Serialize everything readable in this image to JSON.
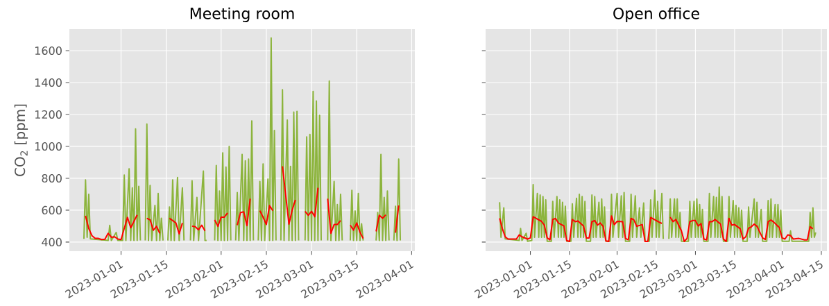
{
  "chart_data": [
    {
      "type": "line",
      "title": "Meeting room",
      "ylabel": "CO$_{2}$ [ppm]",
      "xlim": [
        "2022-12-16",
        "2023-04-02"
      ],
      "ylim": [
        343,
        1735
      ],
      "xticks": [
        "2023-01-01",
        "2023-01-15",
        "2023-02-01",
        "2023-02-15",
        "2023-03-01",
        "2023-03-15",
        "2023-04-01"
      ],
      "yticks": [
        400,
        600,
        800,
        1000,
        1200,
        1400,
        1600
      ],
      "grid": true,
      "series": [
        {
          "color": "#8cb43c",
          "x": [
            "2022-12-20T12:00",
            "2022-12-21",
            "2022-12-21T12:00",
            "2022-12-22",
            "2022-12-22T12:00",
            "2022-12-28",
            "2022-12-28T12:00",
            "2022-12-29",
            "2022-12-30T12:00",
            "2022-12-31",
            "2023-01-01T12:00",
            "2023-01-02",
            "2023-01-02T12:00",
            "2023-01-03T12:00",
            "2023-01-04",
            "2023-01-04T12:00",
            "2023-01-05",
            "2023-01-05T12:00",
            "2023-01-06",
            "2023-01-06T12:00",
            "2023-01-07",
            "2023-01-08",
            "2023-01-08T12:00",
            "2023-01-09",
            "2023-01-09T12:00",
            "2023-01-10",
            "2023-01-10T12:00",
            "2023-01-11T12:00",
            "2023-01-12",
            "2023-01-12T12:00",
            "2023-01-13",
            "2023-01-13T12:00",
            "2023-01-14",
            "2023-01-15",
            "2023-01-15T12:00",
            "2023-01-16",
            "2023-01-16T12:00",
            "2023-01-17",
            "2023-01-17T12:00",
            "2023-01-18T12:00",
            "2023-01-19",
            "2023-01-20",
            "2023-01-20T12:00",
            "2023-01-21T12:00",
            "2023-01-22T12:00",
            "2023-01-23",
            "2023-01-23T12:00",
            "2023-01-24T12:00",
            "2023-01-25",
            "2023-01-26T12:00",
            "2023-01-27",
            "2023-01-27T12:00",
            "2023-01-28T12:00",
            "2023-01-30",
            "2023-01-30T12:00",
            "2023-01-31",
            "2023-01-31T12:00",
            "2023-02-01",
            "2023-02-01T12:00",
            "2023-02-02",
            "2023-02-02T12:00",
            "2023-02-03",
            "2023-02-03T12:00",
            "2023-02-04",
            "2023-02-05",
            "2023-02-05T12:00",
            "2023-02-06",
            "2023-02-06T12:00",
            "2023-02-07T12:00",
            "2023-02-08",
            "2023-02-08T12:00",
            "2023-02-09",
            "2023-02-09T12:00",
            "2023-02-10",
            "2023-02-10T12:00",
            "2023-02-11",
            "2023-02-12",
            "2023-02-12T12:00",
            "2023-02-13",
            "2023-02-13T12:00",
            "2023-02-14",
            "2023-02-14T12:00",
            "2023-02-15T12:00",
            "2023-02-16",
            "2023-02-16T12:00",
            "2023-02-17",
            "2023-02-17T12:00",
            "2023-02-18",
            "2023-02-19",
            "2023-02-19T12:00",
            "2023-02-20",
            "2023-02-20T12:00",
            "2023-02-21T12:00",
            "2023-02-22",
            "2023-02-22T12:00",
            "2023-02-23",
            "2023-02-23T12:00",
            "2023-02-24",
            "2023-02-24T12:00",
            "2023-02-25",
            "2023-02-26",
            "2023-02-27",
            "2023-02-27T12:00",
            "2023-02-28",
            "2023-02-28T12:00",
            "2023-03-01",
            "2023-03-01T12:00",
            "2023-03-02",
            "2023-03-02T12:00",
            "2023-03-03",
            "2023-03-03T12:00",
            "2023-03-04",
            "2023-03-05",
            "2023-03-06",
            "2023-03-06T12:00",
            "2023-03-07",
            "2023-03-08",
            "2023-03-08T12:00",
            "2023-03-09",
            "2023-03-09T12:00",
            "2023-03-10",
            "2023-03-10T12:00",
            "2023-03-12",
            "2023-03-13",
            "2023-03-13T12:00",
            "2023-03-14",
            "2023-03-14T12:00",
            "2023-03-15",
            "2023-03-15T12:00",
            "2023-03-16",
            "2023-03-16T12:00",
            "2023-03-17",
            "2023-03-19",
            "2023-03-21",
            "2023-03-21T12:00",
            "2023-03-22",
            "2023-03-22T12:00",
            "2023-03-23",
            "2023-03-23T12:00",
            "2023-03-24",
            "2023-03-24T12:00",
            "2023-03-25",
            "2023-03-26",
            "2023-03-26T12:00",
            "2023-03-27",
            "2023-03-27T12:00",
            "2023-03-28",
            "2023-03-28T12:00"
          ],
          "values": [
            420,
            790,
            430,
            700,
            420,
            410,
            505,
            410,
            460,
            410,
            410,
            820,
            410,
            860,
            410,
            740,
            410,
            1110,
            410,
            750,
            410,
            null,
            410,
            1140,
            410,
            755,
            410,
            630,
            410,
            705,
            410,
            550,
            410,
            null,
            410,
            620,
            410,
            790,
            410,
            805,
            410,
            740,
            410,
            null,
            410,
            785,
            410,
            680,
            410,
            845,
            410,
            410,
            null,
            410,
            880,
            410,
            720,
            410,
            960,
            410,
            870,
            410,
            1000,
            410,
            null,
            410,
            710,
            410,
            950,
            410,
            910,
            410,
            920,
            410,
            1160,
            410,
            null,
            410,
            780,
            410,
            890,
            410,
            795,
            410,
            1680,
            410,
            1100,
            410,
            null,
            410,
            1355,
            410,
            1165,
            410,
            875,
            410,
            1215,
            410,
            1220,
            410,
            null,
            410,
            1060,
            410,
            1075,
            410,
            1345,
            410,
            1285,
            410,
            1195,
            410,
            null,
            410,
            1410,
            410,
            780,
            410,
            635,
            410,
            700,
            410,
            null,
            410,
            725,
            410,
            595,
            410,
            705,
            410,
            515,
            410,
            null,
            410,
            585,
            410,
            950,
            410,
            680,
            410,
            720,
            410,
            null,
            410,
            625,
            410,
            920,
            410
          ]
        },
        {
          "color": "#ff0000",
          "x": [
            "2022-12-21",
            "2022-12-22",
            "2022-12-23",
            "2022-12-24",
            "2022-12-25",
            "2022-12-26",
            "2022-12-27",
            "2022-12-28",
            "2022-12-29",
            "2022-12-30",
            "2022-12-31",
            "2023-01-01",
            "2023-01-03",
            "2023-01-04",
            "2023-01-06",
            "2023-01-07",
            "2023-01-09",
            "2023-01-10",
            "2023-01-11",
            "2023-01-12",
            "2023-01-13",
            "2023-01-14",
            "2023-01-16",
            "2023-01-18",
            "2023-01-19",
            "2023-01-20",
            "2023-01-21",
            "2023-01-23",
            "2023-01-24",
            "2023-01-25",
            "2023-01-26",
            "2023-01-27",
            "2023-01-28",
            "2023-01-30",
            "2023-01-31",
            "2023-02-01",
            "2023-02-02",
            "2023-02-03",
            "2023-02-04",
            "2023-02-06",
            "2023-02-07",
            "2023-02-08",
            "2023-02-09",
            "2023-02-10",
            "2023-02-11",
            "2023-02-13",
            "2023-02-14",
            "2023-02-15",
            "2023-02-16",
            "2023-02-17",
            "2023-02-18",
            "2023-02-20",
            "2023-02-22",
            "2023-02-23",
            "2023-02-24",
            "2023-02-25",
            "2023-02-27",
            "2023-02-28",
            "2023-03-01",
            "2023-03-02",
            "2023-03-03",
            "2023-03-04",
            "2023-03-06",
            "2023-03-07",
            "2023-03-08",
            "2023-03-09",
            "2023-03-10",
            "2023-03-11",
            "2023-03-13",
            "2023-03-14",
            "2023-03-15",
            "2023-03-16",
            "2023-03-17",
            "2023-03-18",
            "2023-03-21",
            "2023-03-22",
            "2023-03-23",
            "2023-03-24",
            "2023-03-25",
            "2023-03-27",
            "2023-03-28"
          ],
          "values": [
            565,
            485,
            440,
            423,
            423,
            416,
            418,
            455,
            430,
            433,
            419,
            416,
            555,
            490,
            570,
            null,
            549,
            539,
            474,
            499,
            455,
            null,
            549,
            520,
            452,
            520,
            null,
            500,
            496,
            477,
            506,
            470,
            null,
            539,
            499,
            556,
            556,
            583,
            null,
            506,
            585,
            590,
            503,
            672,
            null,
            597,
            556,
            510,
            629,
            597,
            null,
            875,
            513,
            600,
            665,
            null,
            593,
            568,
            593,
            559,
            740,
            null,
            672,
            455,
            510,
            510,
            535,
            null,
            506,
            475,
            520,
            462,
            423,
            null,
            467,
            568,
            549,
            571,
            null,
            459,
            629
          ]
        }
      ]
    },
    {
      "type": "line",
      "title": "Open office",
      "xlim": [
        "2022-12-16",
        "2023-04-17"
      ],
      "ylim": [
        343,
        1735
      ],
      "tick_labels": "x",
      "xticks": [
        "2023-01-01",
        "2023-01-15",
        "2023-02-01",
        "2023-02-15",
        "2023-03-01",
        "2023-03-15",
        "2023-04-01",
        "2023-04-15"
      ],
      "yticks": [
        400,
        600,
        800,
        1000,
        1200,
        1400,
        1600
      ],
      "grid": true,
      "series": [
        {
          "color": "#8cb43c",
          "x": [
            "2022-12-21",
            "2022-12-21T12:00",
            "2022-12-22T12:00",
            "2022-12-23",
            "2022-12-28",
            "2022-12-28T12:00",
            "2022-12-29",
            "2022-12-30T12:00",
            "2022-12-31",
            "2023-01-01T12:00",
            "2023-01-02",
            "2023-01-02T12:00",
            "2023-01-03T12:00",
            "2023-01-04",
            "2023-01-04T12:00",
            "2023-01-05",
            "2023-01-05T12:00",
            "2023-01-06",
            "2023-01-06T12:00",
            "2023-01-07",
            "2023-01-08T12:00",
            "2023-01-09",
            "2023-01-09T12:00",
            "2023-01-10T12:00",
            "2023-01-11",
            "2023-01-11T12:00",
            "2023-01-12",
            "2023-01-12T12:00",
            "2023-01-13",
            "2023-01-13T12:00",
            "2023-01-14",
            "2023-01-15T12:00",
            "2023-01-16",
            "2023-01-16T12:00",
            "2023-01-17T12:00",
            "2023-01-18",
            "2023-01-18T12:00",
            "2023-01-19",
            "2023-01-19T12:00",
            "2023-01-20",
            "2023-01-20T12:00",
            "2023-01-21",
            "2023-01-22T12:00",
            "2023-01-23",
            "2023-01-23T12:00",
            "2023-01-24",
            "2023-01-24T12:00",
            "2023-01-25T12:00",
            "2023-01-26",
            "2023-01-26T12:00",
            "2023-01-27",
            "2023-01-27T12:00",
            "2023-01-28",
            "2023-01-29T12:00",
            "2023-01-30",
            "2023-01-30T12:00",
            "2023-02-01",
            "2023-02-01T12:00",
            "2023-02-02T12:00",
            "2023-02-03",
            "2023-02-03T12:00",
            "2023-02-04",
            "2023-02-05T12:00",
            "2023-02-06",
            "2023-02-06T12:00",
            "2023-02-07T12:00",
            "2023-02-08",
            "2023-02-09",
            "2023-02-09T12:00",
            "2023-02-10T12:00",
            "2023-02-11",
            "2023-02-12T12:00",
            "2023-02-13",
            "2023-02-13T12:00",
            "2023-02-14T12:00",
            "2023-02-15",
            "2023-02-15T12:00",
            "2023-02-16",
            "2023-02-17",
            "2023-02-17T12:00",
            "2023-02-18T12:00",
            "2023-02-19T12:00",
            "2023-02-20",
            "2023-02-20T12:00",
            "2023-02-21T12:00",
            "2023-02-22",
            "2023-02-22T12:00",
            "2023-02-23",
            "2023-02-23T12:00",
            "2023-02-24",
            "2023-02-26T12:00",
            "2023-02-27",
            "2023-02-27T12:00",
            "2023-02-28T12:00",
            "2023-03-01",
            "2023-03-01T12:00",
            "2023-03-02",
            "2023-03-02T12:00",
            "2023-03-03",
            "2023-03-03T12:00",
            "2023-03-04",
            "2023-03-05T12:00",
            "2023-03-06",
            "2023-03-06T12:00",
            "2023-03-07T12:00",
            "2023-03-08",
            "2023-03-08T12:00",
            "2023-03-09",
            "2023-03-09T12:00",
            "2023-03-10",
            "2023-03-10T12:00",
            "2023-03-11",
            "2023-03-12T12:00",
            "2023-03-13",
            "2023-03-13T12:00",
            "2023-03-14T12:00",
            "2023-03-15",
            "2023-03-15T12:00",
            "2023-03-16",
            "2023-03-16T12:00",
            "2023-03-17",
            "2023-03-17T12:00",
            "2023-03-18",
            "2023-03-19T12:00",
            "2023-03-20",
            "2023-03-20T12:00",
            "2023-03-22",
            "2023-03-22T12:00",
            "2023-03-23",
            "2023-03-23T12:00",
            "2023-03-24T12:00",
            "2023-03-25",
            "2023-03-26T12:00",
            "2023-03-27",
            "2023-03-27T12:00",
            "2023-03-28",
            "2023-03-28T12:00",
            "2023-03-29T12:00",
            "2023-03-30",
            "2023-03-30T12:00",
            "2023-03-31",
            "2023-03-31T12:00",
            "2023-04-01",
            "2023-04-03T12:00",
            "2023-04-04",
            "2023-04-04T12:00",
            "2023-04-10T12:00",
            "2023-04-11",
            "2023-04-11T12:00",
            "2023-04-12",
            "2023-04-12T12:00",
            "2023-04-13"
          ],
          "values": [
            650,
            430,
            615,
            420,
            410,
            485,
            410,
            455,
            405,
            410,
            760,
            430,
            705,
            430,
            695,
            430,
            685,
            430,
            665,
            405,
            405,
            655,
            430,
            685,
            430,
            665,
            430,
            650,
            430,
            625,
            405,
            405,
            640,
            430,
            675,
            430,
            700,
            430,
            685,
            430,
            655,
            405,
            405,
            695,
            430,
            685,
            430,
            650,
            430,
            670,
            430,
            620,
            405,
            405,
            700,
            430,
            705,
            430,
            690,
            430,
            710,
            405,
            405,
            700,
            430,
            690,
            430,
            615,
            430,
            645,
            405,
            405,
            665,
            430,
            725,
            430,
            655,
            430,
            705,
            420,
            null,
            420,
            670,
            430,
            670,
            430,
            670,
            430,
            585,
            405,
            405,
            655,
            430,
            655,
            430,
            670,
            430,
            635,
            430,
            605,
            405,
            405,
            705,
            430,
            685,
            430,
            680,
            430,
            745,
            430,
            685,
            405,
            405,
            685,
            430,
            660,
            430,
            630,
            430,
            615,
            430,
            600,
            405,
            405,
            620,
            430,
            670,
            430,
            650,
            430,
            605,
            405,
            405,
            660,
            430,
            670,
            430,
            635,
            430,
            635,
            430,
            600,
            405,
            405,
            470,
            405,
            405,
            585,
            430,
            615,
            430,
            460
          ]
        },
        {
          "color": "#ff0000",
          "x": [
            "2022-12-21",
            "2022-12-22",
            "2022-12-23",
            "2022-12-24",
            "2022-12-27",
            "2022-12-28",
            "2022-12-29",
            "2022-12-31",
            "2023-01-01",
            "2023-01-02",
            "2023-01-03",
            "2023-01-05",
            "2023-01-06",
            "2023-01-07",
            "2023-01-08",
            "2023-01-09",
            "2023-01-10",
            "2023-01-11",
            "2023-01-13",
            "2023-01-14",
            "2023-01-15",
            "2023-01-16",
            "2023-01-17",
            "2023-01-18",
            "2023-01-20",
            "2023-01-21",
            "2023-01-22",
            "2023-01-23",
            "2023-01-24",
            "2023-01-25",
            "2023-01-26",
            "2023-01-27",
            "2023-01-28",
            "2023-01-29",
            "2023-01-30",
            "2023-01-31",
            "2023-02-01",
            "2023-02-03",
            "2023-02-04",
            "2023-02-05",
            "2023-02-06",
            "2023-02-07",
            "2023-02-08",
            "2023-02-10",
            "2023-02-11",
            "2023-02-12",
            "2023-02-13",
            "2023-02-14",
            "2023-02-16",
            "2023-02-17",
            "2023-02-18T12:00",
            "2023-02-20",
            "2023-02-21",
            "2023-02-22",
            "2023-02-24",
            "2023-02-25",
            "2023-02-26",
            "2023-02-27",
            "2023-02-28",
            "2023-03-01",
            "2023-03-02",
            "2023-03-03",
            "2023-03-04",
            "2023-03-05",
            "2023-03-06",
            "2023-03-07",
            "2023-03-08",
            "2023-03-10",
            "2023-03-11",
            "2023-03-12",
            "2023-03-13",
            "2023-03-14",
            "2023-03-15",
            "2023-03-17",
            "2023-03-18",
            "2023-03-19",
            "2023-03-20",
            "2023-03-21",
            "2023-03-22",
            "2023-03-23",
            "2023-03-25",
            "2023-03-26",
            "2023-03-27",
            "2023-03-28",
            "2023-03-29",
            "2023-03-31",
            "2023-04-01",
            "2023-04-02",
            "2023-04-03",
            "2023-04-04",
            "2023-04-05",
            "2023-04-07",
            "2023-04-09",
            "2023-04-10",
            "2023-04-11",
            "2023-04-12"
          ],
          "values": [
            549,
            484,
            433,
            419,
            419,
            445,
            433,
            419,
            426,
            559,
            549,
            530,
            506,
            426,
            414,
            542,
            548,
            520,
            501,
            409,
            404,
            542,
            528,
            532,
            501,
            426,
            426,
            528,
            535,
            506,
            520,
            499,
            407,
            404,
            564,
            509,
            530,
            528,
            423,
            414,
            549,
            539,
            499,
            510,
            404,
            404,
            554,
            545,
            525,
            517,
            null,
            556,
            528,
            542,
            470,
            404,
            423,
            528,
            535,
            535,
            501,
            516,
            419,
            414,
            528,
            528,
            542,
            513,
            419,
            404,
            549,
            506,
            510,
            484,
            419,
            433,
            487,
            496,
            513,
            499,
            426,
            416,
            528,
            538,
            525,
            491,
            426,
            419,
            445,
            441,
            419,
            423,
            414,
            414,
            496,
            484
          ]
        }
      ]
    }
  ]
}
